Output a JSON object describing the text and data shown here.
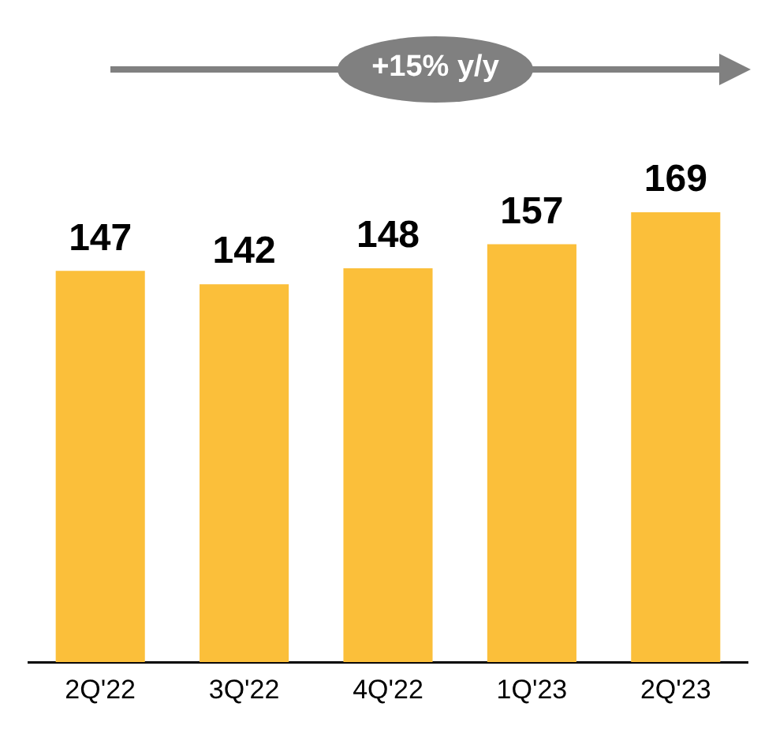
{
  "chart_data": {
    "type": "bar",
    "categories": [
      "2Q'22",
      "3Q'22",
      "4Q'22",
      "1Q'23",
      "2Q'23"
    ],
    "values": [
      147,
      142,
      148,
      157,
      169
    ],
    "color": "#fbbf3a",
    "data_labels": true,
    "legend": false,
    "grid": false,
    "annotations": [
      "+15% y/y"
    ]
  }
}
